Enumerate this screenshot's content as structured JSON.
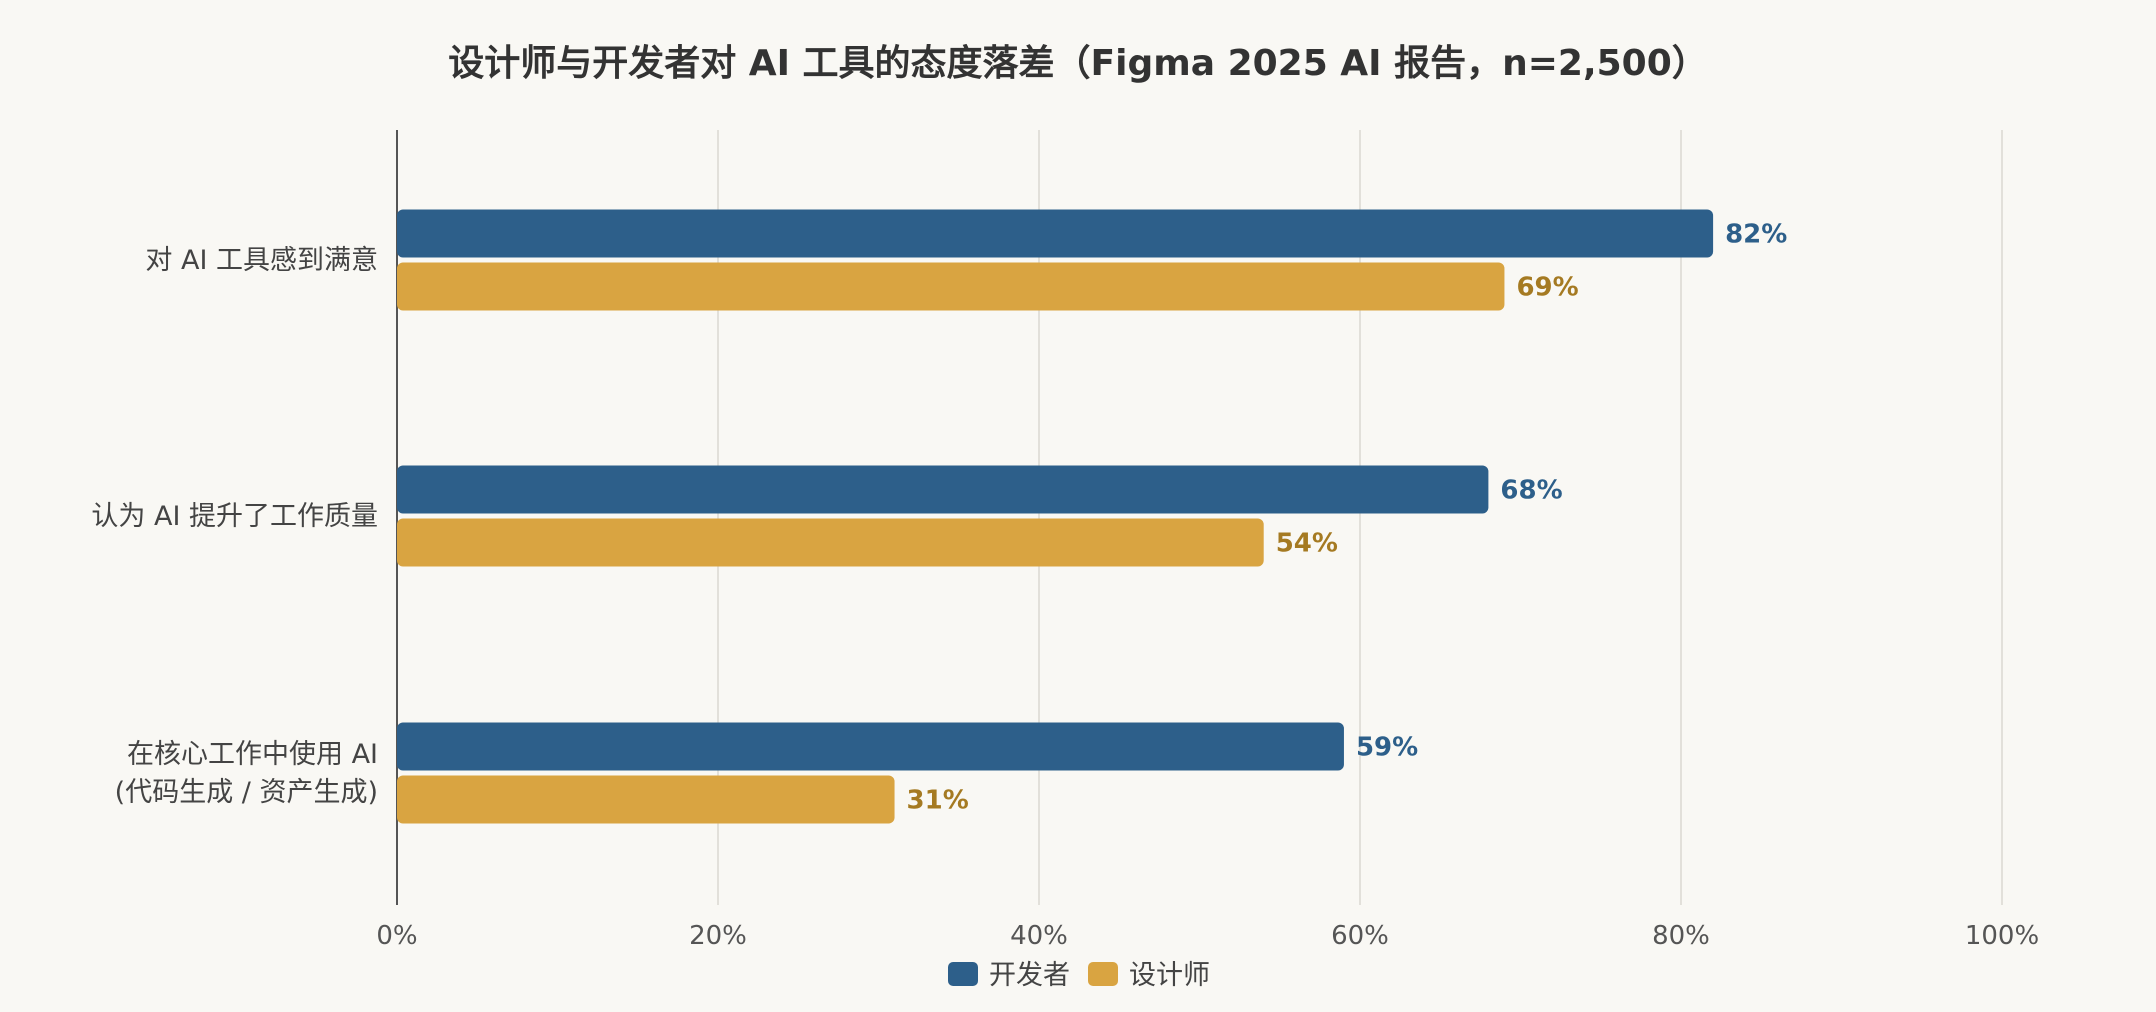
{
  "chart_data": {
    "type": "bar",
    "orientation": "horizontal",
    "title": "设计师与开发者对 AI 工具的态度落差（Figma 2025 AI 报告，n=2,500）",
    "categories": [
      [
        "对 AI 工具感到满意"
      ],
      [
        "认为 AI 提升了工作质量"
      ],
      [
        "在核心工作中使用 AI",
        "(代码生成 / 资产生成)"
      ]
    ],
    "series": [
      {
        "name": "开发者",
        "values": [
          82,
          68,
          59
        ],
        "color": "#2d5f8a",
        "label_color": "#2d5f8a"
      },
      {
        "name": "设计师",
        "values": [
          69,
          54,
          31
        ],
        "color": "#d9a441",
        "label_color": "#a57a22"
      }
    ],
    "value_suffix": "%",
    "xlim": [
      0,
      100
    ],
    "xticks": [
      "0%",
      "20%",
      "40%",
      "60%",
      "80%",
      "100%"
    ],
    "xtick_values": [
      0,
      20,
      40,
      60,
      80,
      100
    ],
    "grid": true,
    "legend_position": "bottom-center"
  }
}
